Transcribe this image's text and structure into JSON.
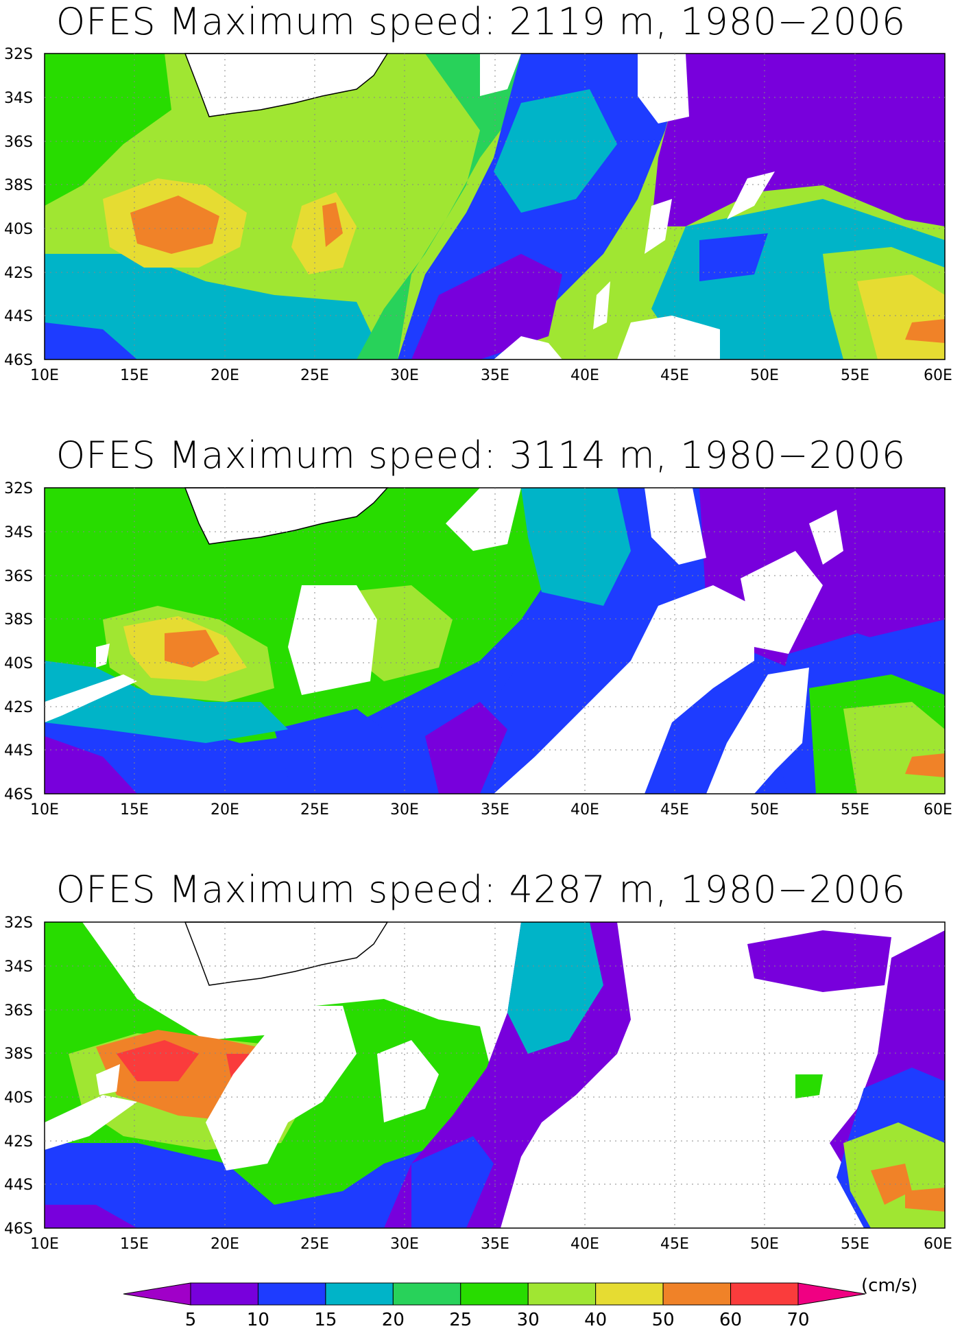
{
  "panels": [
    {
      "title": "OFES Maximum speed: 2119 m, 1980−2006",
      "depth_m": 2119
    },
    {
      "title": "OFES Maximum speed: 3114 m, 1980−2006",
      "depth_m": 3114
    },
    {
      "title": "OFES Maximum speed: 4287 m, 1980−2006",
      "depth_m": 4287
    }
  ],
  "lat_ticks": [
    "32S",
    "34S",
    "36S",
    "38S",
    "40S",
    "42S",
    "44S",
    "46S"
  ],
  "lon_ticks": [
    "10E",
    "15E",
    "20E",
    "25E",
    "30E",
    "35E",
    "40E",
    "45E",
    "50E",
    "55E",
    "60E"
  ],
  "lat_range": [
    -46,
    -32
  ],
  "lon_range": [
    10,
    60
  ],
  "colorbar": {
    "unit": "(cm/s)",
    "labels": [
      "5",
      "10",
      "15",
      "20",
      "25",
      "30",
      "40",
      "50",
      "60",
      "70"
    ],
    "colors": [
      "#a000c8",
      "#7800dc",
      "#1e3cff",
      "#00b4c8",
      "#28d25a",
      "#28dc00",
      "#a0e632",
      "#e6dc32",
      "#f08228",
      "#fa3c3c",
      "#f00082"
    ]
  }
}
